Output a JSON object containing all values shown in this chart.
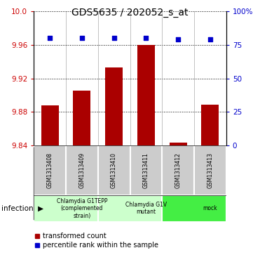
{
  "title": "GDS5635 / 202052_s_at",
  "samples": [
    "GSM1313408",
    "GSM1313409",
    "GSM1313410",
    "GSM1313411",
    "GSM1313412",
    "GSM1313413"
  ],
  "bar_values": [
    9.888,
    9.905,
    9.933,
    9.96,
    9.843,
    9.889
  ],
  "percentile_values": [
    80,
    80,
    80,
    80,
    79,
    79
  ],
  "bar_color": "#AA0000",
  "dot_color": "#0000CC",
  "ylim_left": [
    9.84,
    10.0
  ],
  "ylim_right": [
    0,
    100
  ],
  "yticks_left": [
    9.84,
    9.88,
    9.92,
    9.96,
    10.0
  ],
  "yticks_right": [
    0,
    25,
    50,
    75,
    100
  ],
  "ytick_labels_right": [
    "0",
    "25",
    "50",
    "75",
    "100%"
  ],
  "groups": [
    {
      "label": "Chlamydia G1TEPP\n(complemented\nstrain)",
      "color": "#ccffcc",
      "start": 0,
      "end": 2
    },
    {
      "label": "Chlamydia G1V\nmutant",
      "color": "#ccffcc",
      "start": 2,
      "end": 4
    },
    {
      "label": "mock",
      "color": "#44ee44",
      "start": 4,
      "end": 6
    }
  ],
  "infection_label": "infection",
  "legend_bar_label": "transformed count",
  "legend_dot_label": "percentile rank within the sample",
  "bar_baseline": 9.84,
  "bar_width": 0.55,
  "gridline_color": "#000000"
}
